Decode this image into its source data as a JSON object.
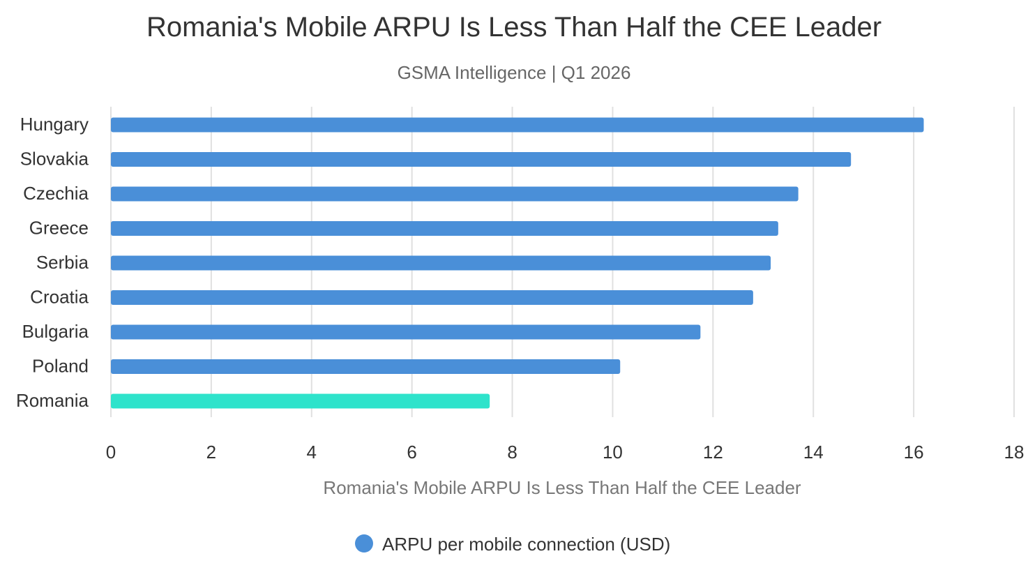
{
  "chart_data": {
    "type": "bar",
    "orientation": "horizontal",
    "title": "Romania's Mobile ARPU Is Less Than Half the CEE Leader",
    "subtitle": "GSMA Intelligence | Q1 2026",
    "xlabel": "Romania's Mobile ARPU Is Less Than Half the CEE Leader",
    "ylabel": "",
    "xlim": [
      0,
      18
    ],
    "x_ticks": [
      0,
      2,
      4,
      6,
      8,
      10,
      12,
      14,
      16,
      18
    ],
    "grid": "vertical",
    "categories": [
      "Hungary",
      "Slovakia",
      "Czechia",
      "Greece",
      "Serbia",
      "Croatia",
      "Bulgaria",
      "Poland",
      "Romania"
    ],
    "series": [
      {
        "name": "ARPU per mobile connection (USD)",
        "values": [
          16.2,
          14.75,
          13.7,
          13.3,
          13.15,
          12.8,
          11.75,
          10.15,
          7.55
        ],
        "color": "#4a8fd8"
      }
    ],
    "highlight": {
      "category": "Romania",
      "color": "#2ee3cb"
    },
    "legend": {
      "position": "bottom",
      "marker_color": "#4a8fd8"
    }
  }
}
